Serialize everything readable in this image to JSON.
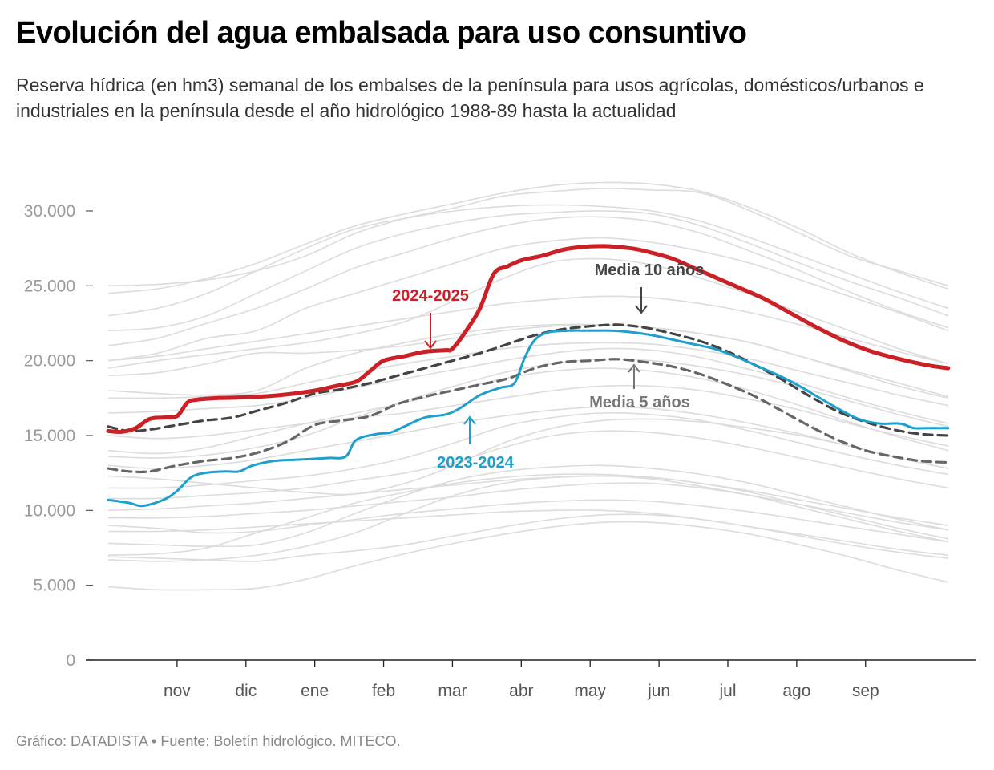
{
  "header": {
    "title": "Evolución del agua embalsada para uso consuntivo",
    "subtitle": "Reserva hídrica (en hm3) semanal de los embalses de la península para usos agrícolas, domésticos/urbanos e industriales en la península desde el año hidrológico 1988-89 hasta la actualidad"
  },
  "footer": {
    "source": "Gráfico: DATADISTA • Fuente: Boletín hidrológico. MITECO."
  },
  "chart_data": {
    "type": "line",
    "y_ticks": [
      {
        "value": 0,
        "label": "0"
      },
      {
        "value": 5000,
        "label": "5.000"
      },
      {
        "value": 10000,
        "label": "10.000"
      },
      {
        "value": 15000,
        "label": "15.000"
      },
      {
        "value": 20000,
        "label": "20.000"
      },
      {
        "value": 25000,
        "label": "25.000"
      },
      {
        "value": 30000,
        "label": "30.000"
      }
    ],
    "x_ticks": [
      {
        "value": 1,
        "label": "nov"
      },
      {
        "value": 2,
        "label": "dic"
      },
      {
        "value": 3,
        "label": "ene"
      },
      {
        "value": 4,
        "label": "feb"
      },
      {
        "value": 5,
        "label": "mar"
      },
      {
        "value": 6,
        "label": "abr"
      },
      {
        "value": 7,
        "label": "may"
      },
      {
        "value": 8,
        "label": "jun"
      },
      {
        "value": 9,
        "label": "jul"
      },
      {
        "value": 10,
        "label": "ago"
      },
      {
        "value": 11,
        "label": "sep"
      }
    ],
    "xlim": [
      0,
      12.4
    ],
    "ylim": [
      0,
      32000
    ],
    "grid": false,
    "colors": {
      "background_series": "#dcdcdc",
      "current": "#cc2027",
      "previous": "#1e9fcc",
      "avg10": "#444444",
      "avg5": "#666666"
    },
    "highlight_series": [
      {
        "name": "2024-2025",
        "style": "current",
        "x": [
          0,
          0.2,
          0.4,
          0.6,
          0.8,
          1.0,
          1.15,
          1.3,
          1.6,
          2.0,
          2.5,
          3.0,
          3.3,
          3.6,
          3.8,
          4.0,
          4.3,
          4.6,
          4.9,
          5.0,
          5.2,
          5.4,
          5.6,
          5.8,
          6.0,
          6.3,
          6.6,
          6.9,
          7.2,
          7.6,
          7.9,
          8.2,
          8.5,
          8.8,
          9.1,
          9.5,
          9.9,
          10.3,
          10.7,
          11.1,
          11.5,
          11.9,
          12.2
        ],
        "y": [
          15300,
          15250,
          15500,
          16100,
          16200,
          16300,
          17200,
          17400,
          17500,
          17550,
          17700,
          18000,
          18300,
          18600,
          19300,
          20000,
          20300,
          20600,
          20700,
          20800,
          22000,
          23500,
          25800,
          26300,
          26700,
          27000,
          27400,
          27600,
          27650,
          27500,
          27200,
          26800,
          26200,
          25600,
          25000,
          24200,
          23200,
          22200,
          21300,
          20600,
          20100,
          19700,
          19500
        ]
      },
      {
        "name": "2023-2024",
        "style": "previous",
        "x": [
          0,
          0.3,
          0.5,
          0.8,
          1.0,
          1.2,
          1.4,
          1.7,
          1.9,
          2.1,
          2.4,
          2.8,
          3.2,
          3.45,
          3.6,
          3.9,
          4.1,
          4.3,
          4.6,
          4.9,
          5.1,
          5.4,
          5.7,
          5.9,
          6.05,
          6.2,
          6.4,
          6.7,
          7.0,
          7.3,
          7.6,
          7.9,
          8.2,
          8.5,
          8.8,
          9.1,
          9.4,
          9.7,
          10.0,
          10.3,
          10.6,
          10.9,
          11.2,
          11.5,
          11.7,
          11.9,
          12.2
        ],
        "y": [
          10700,
          10500,
          10300,
          10700,
          11300,
          12200,
          12500,
          12600,
          12600,
          13000,
          13300,
          13400,
          13500,
          13600,
          14700,
          15100,
          15200,
          15600,
          16200,
          16400,
          16800,
          17700,
          18200,
          18500,
          20200,
          21400,
          21900,
          22000,
          22000,
          22000,
          21900,
          21700,
          21400,
          21100,
          20800,
          20300,
          19700,
          19100,
          18400,
          17600,
          16800,
          16100,
          15800,
          15800,
          15500,
          15500,
          15500
        ]
      },
      {
        "name": "Media 10 años",
        "style": "avg10",
        "x": [
          0,
          0.3,
          0.6,
          1.0,
          1.4,
          1.8,
          2.2,
          2.6,
          3.0,
          3.4,
          3.8,
          4.2,
          4.6,
          5.0,
          5.4,
          5.8,
          6.2,
          6.6,
          7.0,
          7.4,
          7.8,
          8.2,
          8.6,
          9.0,
          9.4,
          9.8,
          10.2,
          10.6,
          11.0,
          11.4,
          11.8,
          12.2
        ],
        "y": [
          15600,
          15300,
          15400,
          15700,
          16000,
          16200,
          16700,
          17200,
          17800,
          18100,
          18500,
          19000,
          19500,
          20000,
          20500,
          21100,
          21700,
          22100,
          22300,
          22400,
          22200,
          21800,
          21300,
          20600,
          19700,
          18700,
          17600,
          16600,
          15900,
          15400,
          15100,
          15000
        ]
      },
      {
        "name": "Media 5 años",
        "style": "avg5",
        "x": [
          0,
          0.3,
          0.6,
          1.0,
          1.4,
          1.8,
          2.2,
          2.6,
          3.0,
          3.4,
          3.8,
          4.2,
          4.6,
          5.0,
          5.4,
          5.8,
          6.2,
          6.6,
          7.0,
          7.4,
          7.8,
          8.2,
          8.6,
          9.0,
          9.4,
          9.8,
          10.2,
          10.6,
          11.0,
          11.4,
          11.8,
          12.2
        ],
        "y": [
          12800,
          12600,
          12600,
          13000,
          13300,
          13500,
          13900,
          14600,
          15700,
          16000,
          16300,
          17100,
          17600,
          18000,
          18400,
          18800,
          19500,
          19900,
          20000,
          20100,
          19900,
          19600,
          19100,
          18400,
          17600,
          16600,
          15600,
          14700,
          14000,
          13600,
          13300,
          13200
        ]
      }
    ],
    "background_series": [
      [
        25000,
        25100,
        25400,
        26000,
        27000,
        28500,
        29500,
        30200,
        31000,
        31300,
        31500,
        31400,
        31200,
        30000,
        28500,
        27000,
        26000,
        25000
      ],
      [
        24500,
        24800,
        25500,
        26500,
        27800,
        29000,
        29800,
        30500,
        31200,
        31700,
        31900,
        31800,
        31300,
        30200,
        28800,
        27200,
        25900,
        24800
      ],
      [
        23000,
        23500,
        24500,
        26000,
        27500,
        28800,
        29500,
        30000,
        30300,
        30400,
        30300,
        30000,
        29300,
        28200,
        27000,
        25800,
        24600,
        23500
      ],
      [
        22000,
        22200,
        23000,
        24500,
        26000,
        27500,
        28500,
        29200,
        29700,
        29900,
        30000,
        29800,
        29000,
        27800,
        26500,
        25300,
        24200,
        23000
      ],
      [
        21000,
        21500,
        22500,
        23500,
        24800,
        26200,
        27200,
        28200,
        29000,
        29500,
        29600,
        29300,
        28500,
        27300,
        26000,
        24600,
        23300,
        22200
      ],
      [
        20000,
        20500,
        21500,
        22000,
        23500,
        24500,
        25500,
        26500,
        27500,
        28000,
        28200,
        27900,
        27300,
        26500,
        25400,
        24300,
        23200,
        22000
      ],
      [
        19500,
        20000,
        20400,
        20800,
        21200,
        21800,
        22600,
        24000,
        25500,
        26600,
        26800,
        26400,
        25500,
        24400,
        23200,
        22000,
        20800,
        19800
      ],
      [
        19000,
        19200,
        19800,
        20500,
        20500,
        20700,
        21000,
        21500,
        22000,
        22300,
        22400,
        22200,
        21800,
        21200,
        20300,
        19400,
        18500,
        17600
      ],
      [
        18000,
        17800,
        17700,
        18000,
        19500,
        20500,
        21200,
        21800,
        22200,
        22400,
        22400,
        22200,
        21800,
        21200,
        20300,
        19300,
        18300,
        17500
      ],
      [
        17500,
        17500,
        17600,
        17800,
        18500,
        19200,
        19800,
        20300,
        20800,
        21100,
        21200,
        21100,
        20700,
        20100,
        19300,
        18500,
        17700,
        17000
      ],
      [
        16500,
        16600,
        16800,
        17000,
        17500,
        18200,
        18800,
        19400,
        20000,
        20500,
        20800,
        20700,
        20200,
        19400,
        18500,
        17500,
        16600,
        15800
      ],
      [
        15000,
        14800,
        15000,
        15400,
        15800,
        16200,
        16500,
        17000,
        17500,
        18000,
        18300,
        18300,
        18000,
        17400,
        16700,
        15800,
        15000,
        14300
      ],
      [
        14000,
        13800,
        14200,
        15000,
        15800,
        16500,
        17200,
        18000,
        18800,
        19300,
        19500,
        19300,
        18800,
        18000,
        17000,
        15900,
        14900,
        14000
      ],
      [
        13000,
        12800,
        13000,
        13400,
        14000,
        14600,
        15200,
        15800,
        16300,
        16700,
        16900,
        16800,
        16400,
        15800,
        15100,
        14300,
        13500,
        12800
      ],
      [
        12300,
        12100,
        11800,
        11500,
        11200,
        11100,
        11800,
        13000,
        14500,
        15500,
        16000,
        16100,
        15900,
        15500,
        15000,
        14300,
        13500,
        12800
      ],
      [
        11500,
        11500,
        11700,
        12000,
        12300,
        12800,
        13500,
        14500,
        15600,
        16200,
        16500,
        16400,
        16000,
        15300,
        14500,
        13700,
        13000,
        12400
      ],
      [
        10800,
        10800,
        11000,
        11200,
        11500,
        12000,
        12500,
        13200,
        14200,
        15000,
        15300,
        15200,
        14800,
        14200,
        13500,
        12800,
        12100,
        11500
      ],
      [
        10000,
        10100,
        10300,
        10500,
        10800,
        11100,
        11400,
        11700,
        12000,
        12200,
        12300,
        12200,
        11800,
        11300,
        10700,
        10100,
        9500,
        9000
      ],
      [
        9500,
        9500,
        9600,
        9800,
        10000,
        10300,
        10600,
        10900,
        11300,
        11600,
        11800,
        11800,
        11500,
        11000,
        10400,
        9800,
        9200,
        8700
      ],
      [
        9000,
        8800,
        8500,
        8600,
        9000,
        9400,
        9800,
        10100,
        10400,
        10600,
        10700,
        10600,
        10300,
        9900,
        9400,
        8900,
        8400,
        7900
      ],
      [
        8600,
        8600,
        8700,
        8900,
        9100,
        9300,
        9500,
        9700,
        9900,
        10000,
        10000,
        9800,
        9400,
        8900,
        8400,
        7900,
        7400,
        7000
      ],
      [
        7800,
        7700,
        7600,
        7700,
        8500,
        9800,
        11000,
        12000,
        12600,
        12900,
        13000,
        12800,
        12400,
        11800,
        11000,
        10200,
        9400,
        8700
      ],
      [
        7000,
        7100,
        7500,
        8500,
        9500,
        10500,
        11200,
        11800,
        12200,
        12400,
        12400,
        12200,
        11800,
        11200,
        10400,
        9600,
        8800,
        8100
      ],
      [
        6700,
        6600,
        6700,
        7000,
        7600,
        8500,
        9800,
        11000,
        11800,
        12200,
        12300,
        12100,
        11600,
        11000,
        10200,
        9400,
        8600,
        7900
      ],
      [
        6900,
        6800,
        6700,
        6600,
        7000,
        7300,
        7700,
        8300,
        8900,
        9400,
        9700,
        9700,
        9400,
        8900,
        8300,
        7700,
        7200,
        6800
      ],
      [
        4900,
        4700,
        4700,
        4800,
        5400,
        6300,
        7100,
        7800,
        8400,
        8900,
        9200,
        9200,
        8900,
        8400,
        7700,
        6900,
        6000,
        5200
      ],
      [
        13600,
        13500,
        13700,
        14200,
        15000,
        16200,
        17300,
        18300,
        19200,
        19800,
        20100,
        20000,
        19600,
        19000,
        18200,
        17300,
        16400,
        15600
      ],
      [
        20000,
        20300,
        20800,
        21300,
        21800,
        22300,
        22800,
        23300,
        23800,
        24100,
        24300,
        24200,
        23800,
        23200,
        22400,
        21500,
        20600,
        19800
      ]
    ],
    "annotations": [
      {
        "text": "2024-2025",
        "series": "2024-2025",
        "color": "#cc2027"
      },
      {
        "text": "2023-2024",
        "series": "2023-2024",
        "color": "#1e9fcc"
      },
      {
        "text": "Media 10 años",
        "series": "Media 10 años",
        "color": "#444444"
      },
      {
        "text": "Media 5 años",
        "series": "Media 5 años",
        "color": "#777777"
      }
    ]
  }
}
